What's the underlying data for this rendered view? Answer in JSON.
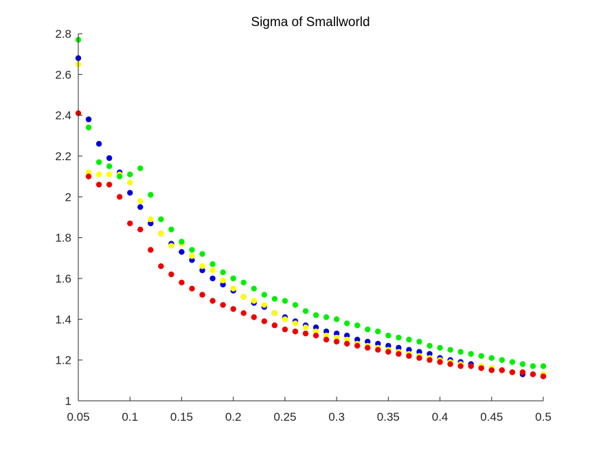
{
  "chart_data": {
    "type": "scatter",
    "title": "Sigma of Smallworld",
    "xlabel": "",
    "ylabel": "",
    "xlim": [
      0.05,
      0.5
    ],
    "ylim": [
      1,
      2.8
    ],
    "grid": false,
    "legend": null,
    "xticks": [
      0.05,
      0.1,
      0.15,
      0.2,
      0.25,
      0.3,
      0.35,
      0.4,
      0.45,
      0.5
    ],
    "xtick_labels": [
      "0.05",
      "0.1",
      "0.15",
      "0.2",
      "0.25",
      "0.3",
      "0.35",
      "0.4",
      "0.45",
      "0.5"
    ],
    "yticks": [
      1,
      1.2,
      1.4,
      1.6,
      1.8,
      2,
      2.2,
      2.4,
      2.6,
      2.8
    ],
    "ytick_labels": [
      "1",
      "1.2",
      "1.4",
      "1.6",
      "1.8",
      "2",
      "2.2",
      "2.4",
      "2.6",
      "2.8"
    ],
    "x": [
      0.05,
      0.06,
      0.07,
      0.08,
      0.09,
      0.1,
      0.11,
      0.12,
      0.13,
      0.14,
      0.15,
      0.16,
      0.17,
      0.18,
      0.19,
      0.2,
      0.21,
      0.22,
      0.23,
      0.24,
      0.25,
      0.26,
      0.27,
      0.28,
      0.29,
      0.3,
      0.31,
      0.32,
      0.33,
      0.34,
      0.35,
      0.36,
      0.37,
      0.38,
      0.39,
      0.4,
      0.41,
      0.42,
      0.43,
      0.44,
      0.45,
      0.46,
      0.47,
      0.48,
      0.49,
      0.5
    ],
    "series": [
      {
        "name": "blue",
        "color": "#0000dd",
        "values": [
          2.68,
          2.38,
          2.26,
          2.19,
          2.12,
          2.02,
          1.95,
          1.87,
          1.82,
          1.77,
          1.73,
          1.69,
          1.64,
          1.6,
          1.57,
          1.54,
          1.51,
          1.48,
          1.46,
          1.43,
          1.41,
          1.39,
          1.37,
          1.36,
          1.34,
          1.33,
          1.32,
          1.3,
          1.29,
          1.28,
          1.27,
          1.26,
          1.25,
          1.24,
          1.23,
          1.21,
          1.2,
          1.19,
          1.18,
          1.17,
          1.16,
          1.15,
          1.14,
          1.13,
          1.13,
          1.12
        ]
      },
      {
        "name": "yellow",
        "color": "#ffff00",
        "values": [
          2.65,
          2.12,
          2.11,
          2.11,
          2.11,
          2.07,
          1.98,
          1.89,
          1.82,
          1.76,
          1.77,
          1.71,
          1.66,
          1.64,
          1.59,
          1.55,
          1.51,
          1.49,
          1.47,
          1.43,
          1.4,
          1.38,
          1.36,
          1.34,
          1.32,
          1.31,
          1.3,
          1.28,
          1.27,
          1.26,
          1.25,
          1.24,
          1.23,
          1.22,
          1.21,
          1.2,
          1.19,
          1.18,
          1.17,
          1.17,
          1.16,
          1.15,
          1.14,
          1.14,
          1.13,
          1.13
        ]
      },
      {
        "name": "green",
        "color": "#00ee00",
        "values": [
          2.77,
          2.34,
          2.17,
          2.15,
          2.1,
          2.11,
          2.14,
          2.01,
          1.89,
          1.84,
          1.78,
          1.74,
          1.72,
          1.67,
          1.63,
          1.6,
          1.58,
          1.55,
          1.52,
          1.5,
          1.49,
          1.47,
          1.44,
          1.42,
          1.41,
          1.4,
          1.38,
          1.37,
          1.35,
          1.34,
          1.32,
          1.31,
          1.3,
          1.29,
          1.27,
          1.26,
          1.25,
          1.24,
          1.23,
          1.22,
          1.21,
          1.2,
          1.19,
          1.18,
          1.17,
          1.17
        ]
      },
      {
        "name": "red",
        "color": "#ee0000",
        "values": [
          2.41,
          2.1,
          2.06,
          2.06,
          2.0,
          1.87,
          1.84,
          1.74,
          1.66,
          1.62,
          1.58,
          1.55,
          1.52,
          1.49,
          1.47,
          1.45,
          1.43,
          1.41,
          1.39,
          1.37,
          1.35,
          1.34,
          1.33,
          1.32,
          1.3,
          1.29,
          1.28,
          1.27,
          1.26,
          1.25,
          1.24,
          1.23,
          1.22,
          1.21,
          1.2,
          1.19,
          1.18,
          1.17,
          1.17,
          1.16,
          1.15,
          1.15,
          1.14,
          1.14,
          1.13,
          1.12
        ]
      }
    ]
  }
}
